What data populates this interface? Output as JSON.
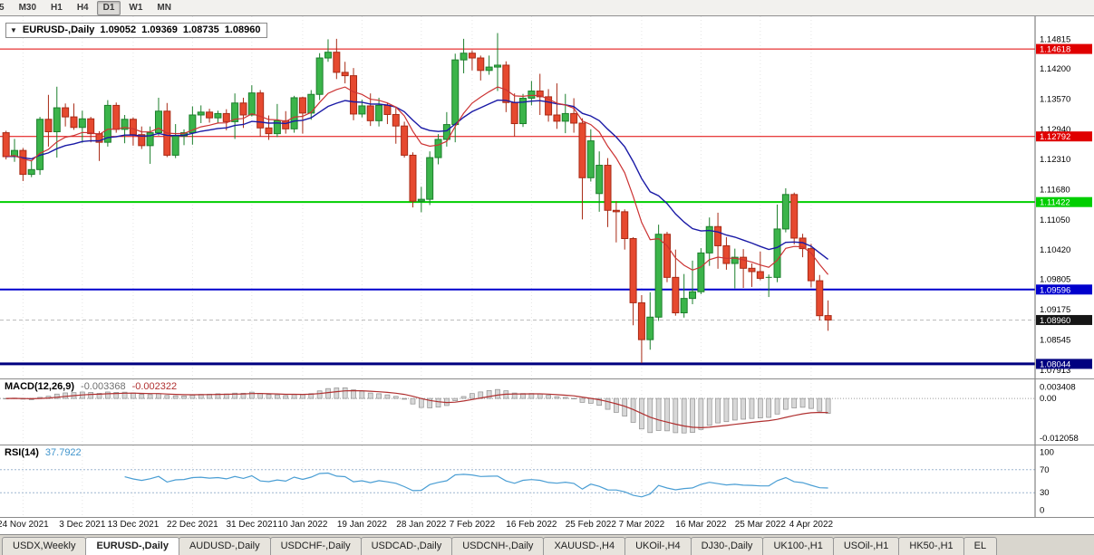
{
  "toolbar": {
    "timeframes": [
      {
        "label": "5",
        "active": false
      },
      {
        "label": "M30",
        "active": false
      },
      {
        "label": "H1",
        "active": false
      },
      {
        "label": "H4",
        "active": false
      },
      {
        "label": "D1",
        "active": true
      },
      {
        "label": "W1",
        "active": false
      },
      {
        "label": "MN",
        "active": false
      }
    ]
  },
  "chart": {
    "collapse_arrow_icon": "▼",
    "symbol_label": "EURUSD-,Daily",
    "ohlc": {
      "open": "1.09052",
      "high": "1.09369",
      "low": "1.08735",
      "close": "1.08960"
    }
  },
  "indicators": {
    "macd": {
      "name": "MACD(12,26,9)",
      "main_value": "-0.003368",
      "signal_value": "-0.002322",
      "axis_labels": [
        {
          "value": 0.003408,
          "label": "0.003408"
        },
        {
          "value": 0,
          "label": "0.00"
        },
        {
          "value": -0.012058,
          "label": "-0.012058"
        }
      ]
    },
    "rsi": {
      "name": "RSI(14)",
      "value": "37.7922",
      "levels": [
        70,
        30
      ],
      "axis_labels": [
        {
          "value": 100,
          "label": "100"
        },
        {
          "value": 70,
          "label": "70"
        },
        {
          "value": 30,
          "label": "30"
        },
        {
          "value": 0,
          "label": "0"
        }
      ]
    }
  },
  "tabs": [
    {
      "label": "USDX,Weekly",
      "active": false
    },
    {
      "label": "EURUSD-,Daily",
      "active": true
    },
    {
      "label": "AUDUSD-,Daily",
      "active": false
    },
    {
      "label": "USDCHF-,Daily",
      "active": false
    },
    {
      "label": "USDCAD-,Daily",
      "active": false
    },
    {
      "label": "USDCNH-,Daily",
      "active": false
    },
    {
      "label": "XAUUSD-,H4",
      "active": false
    },
    {
      "label": "UKOil-,H4",
      "active": false
    },
    {
      "label": "DJ30-,Daily",
      "active": false
    },
    {
      "label": "UK100-,H1",
      "active": false
    },
    {
      "label": "USOil-,H1",
      "active": false
    },
    {
      "label": "HK50-,H1",
      "active": false
    },
    {
      "label": "EL",
      "active": false
    }
  ],
  "chart_data": {
    "type": "candlestick",
    "symbol": "EURUSD-",
    "timeframe": "Daily",
    "colors": {
      "up": "#3bb44a",
      "up_border": "#1c7f2c",
      "down": "#e6492f",
      "down_border": "#a82a15",
      "ma_fast": "#cc3333",
      "ma_slow": "#1a1aa6",
      "macd_hist": "#d8d8d8",
      "macd_hist_border": "#8f8f8f",
      "macd_signal": "#b03030",
      "rsi_line": "#4a9ed4"
    },
    "y_axis": {
      "min": 1.0774,
      "max": 1.153,
      "labels": [
        {
          "value": 1.14815,
          "label": "1.14815"
        },
        {
          "value": 1.142,
          "label": "1.14200"
        },
        {
          "value": 1.1357,
          "label": "1.13570"
        },
        {
          "value": 1.1294,
          "label": "1.12940"
        },
        {
          "value": 1.1231,
          "label": "1.12310"
        },
        {
          "value": 1.1168,
          "label": "1.11680"
        },
        {
          "value": 1.1105,
          "label": "1.11050"
        },
        {
          "value": 1.1042,
          "label": "1.10420"
        },
        {
          "value": 1.09805,
          "label": "1.09805"
        },
        {
          "value": 1.09175,
          "label": "1.09175"
        },
        {
          "value": 1.08545,
          "label": "1.08545"
        },
        {
          "value": 1.07913,
          "label": "1.07913"
        }
      ]
    },
    "levels": [
      {
        "price": 1.14618,
        "label": "1.14618",
        "color": "#e00000",
        "line_width": 1
      },
      {
        "price": 1.12792,
        "label": "1.12792",
        "color": "#e00000",
        "line_width": 1
      },
      {
        "price": 1.11422,
        "label": "1.11422",
        "color": "#00ce00",
        "line_width": 2
      },
      {
        "price": 1.09596,
        "label": "1.09596",
        "color": "#0000cd",
        "line_width": 2
      },
      {
        "price": 1.08044,
        "label": "1.08044",
        "color": "#000080",
        "line_width": 3
      }
    ],
    "current_price": {
      "price": 1.0896,
      "label": "1.08960",
      "label_bg": "#161616"
    },
    "moving_averages": [
      {
        "type": "EMA",
        "period": 10,
        "color_key": "ma_fast"
      },
      {
        "type": "EMA",
        "period": 20,
        "color_key": "ma_slow"
      }
    ],
    "x_ticks": [
      {
        "index": 2,
        "label": "24 Nov 2021"
      },
      {
        "index": 9,
        "label": "3 Dec 2021"
      },
      {
        "index": 15,
        "label": "13 Dec 2021"
      },
      {
        "index": 22,
        "label": "22 Dec 2021"
      },
      {
        "index": 29,
        "label": "31 Dec 2021"
      },
      {
        "index": 35,
        "label": "10 Jan 2022"
      },
      {
        "index": 42,
        "label": "19 Jan 2022"
      },
      {
        "index": 49,
        "label": "28 Jan 2022"
      },
      {
        "index": 55,
        "label": "7 Feb 2022"
      },
      {
        "index": 62,
        "label": "16 Feb 2022"
      },
      {
        "index": 69,
        "label": "25 Feb 2022"
      },
      {
        "index": 75,
        "label": "7 Mar 2022"
      },
      {
        "index": 82,
        "label": "16 Mar 2022"
      },
      {
        "index": 89,
        "label": "25 Mar 2022"
      },
      {
        "index": 95,
        "label": "4 Apr 2022"
      }
    ],
    "candles": [
      [
        1.1287,
        1.1291,
        1.12312,
        1.1237
      ],
      [
        1.1237,
        1.1274,
        1.12262,
        1.125
      ],
      [
        1.125,
        1.1255,
        1.11861,
        1.12
      ],
      [
        1.12,
        1.1229,
        1.11942,
        1.121
      ],
      [
        1.121,
        1.132,
        1.1199,
        1.1315
      ],
      [
        1.1315,
        1.1366,
        1.1258,
        1.1289
      ],
      [
        1.1289,
        1.1383,
        1.1235,
        1.1339
      ],
      [
        1.1339,
        1.1348,
        1.13,
        1.132
      ],
      [
        1.132,
        1.1348,
        1.1293,
        1.1298
      ],
      [
        1.1298,
        1.1333,
        1.1266,
        1.1316
      ],
      [
        1.1316,
        1.132,
        1.1267,
        1.1285
      ],
      [
        1.1285,
        1.129,
        1.1228,
        1.1267
      ],
      [
        1.1267,
        1.1355,
        1.1258,
        1.1344
      ],
      [
        1.1344,
        1.135,
        1.1287,
        1.1294
      ],
      [
        1.1294,
        1.1324,
        1.1265,
        1.1315
      ],
      [
        1.1315,
        1.1319,
        1.126,
        1.1283
      ],
      [
        1.1283,
        1.13,
        1.1253,
        1.126
      ],
      [
        1.126,
        1.13,
        1.1222,
        1.1287
      ],
      [
        1.1287,
        1.136,
        1.1281,
        1.1332
      ],
      [
        1.1332,
        1.1349,
        1.1236,
        1.124
      ],
      [
        1.124,
        1.1305,
        1.1234,
        1.128
      ],
      [
        1.128,
        1.1294,
        1.1261,
        1.1287
      ],
      [
        1.1287,
        1.1342,
        1.1262,
        1.1324
      ],
      [
        1.1324,
        1.1344,
        1.1307,
        1.133
      ],
      [
        1.133,
        1.1337,
        1.1308,
        1.1318
      ],
      [
        1.1318,
        1.1333,
        1.1306,
        1.1327
      ],
      [
        1.1327,
        1.1336,
        1.1292,
        1.131
      ],
      [
        1.131,
        1.1369,
        1.1274,
        1.1349
      ],
      [
        1.1349,
        1.136,
        1.1297,
        1.1324
      ],
      [
        1.1324,
        1.1386,
        1.1321,
        1.137
      ],
      [
        1.137,
        1.1376,
        1.1279,
        1.1297
      ],
      [
        1.1297,
        1.1323,
        1.1272,
        1.1285
      ],
      [
        1.1285,
        1.1347,
        1.1278,
        1.1312
      ],
      [
        1.1312,
        1.1332,
        1.1285,
        1.1295
      ],
      [
        1.1295,
        1.1364,
        1.1287,
        1.136
      ],
      [
        1.136,
        1.1362,
        1.1285,
        1.1328
      ],
      [
        1.1328,
        1.1376,
        1.1314,
        1.1367
      ],
      [
        1.1367,
        1.1453,
        1.1355,
        1.1443
      ],
      [
        1.1443,
        1.1482,
        1.1435,
        1.1455
      ],
      [
        1.1455,
        1.1483,
        1.1399,
        1.1413
      ],
      [
        1.1413,
        1.1435,
        1.139,
        1.1406
      ],
      [
        1.1406,
        1.1422,
        1.1313,
        1.1326
      ],
      [
        1.1326,
        1.1356,
        1.1319,
        1.1343
      ],
      [
        1.1343,
        1.1369,
        1.1301,
        1.1312
      ],
      [
        1.1312,
        1.136,
        1.13,
        1.1344
      ],
      [
        1.1344,
        1.1349,
        1.1305,
        1.1325
      ],
      [
        1.1325,
        1.1339,
        1.1264,
        1.1301
      ],
      [
        1.1301,
        1.131,
        1.1235,
        1.124
      ],
      [
        1.124,
        1.1246,
        1.1131,
        1.1144
      ],
      [
        1.1144,
        1.1174,
        1.1121,
        1.1148
      ],
      [
        1.1148,
        1.1248,
        1.1136,
        1.1235
      ],
      [
        1.1235,
        1.1284,
        1.1221,
        1.1273
      ],
      [
        1.1273,
        1.133,
        1.1258,
        1.1304
      ],
      [
        1.1304,
        1.1452,
        1.1267,
        1.1439
      ],
      [
        1.1439,
        1.1483,
        1.1411,
        1.1453
      ],
      [
        1.1453,
        1.1459,
        1.1417,
        1.1443
      ],
      [
        1.1443,
        1.1448,
        1.1396,
        1.1417
      ],
      [
        1.1417,
        1.1448,
        1.1408,
        1.1424
      ],
      [
        1.1424,
        1.1495,
        1.1374,
        1.1428
      ],
      [
        1.1428,
        1.1436,
        1.133,
        1.135
      ],
      [
        1.135,
        1.1369,
        1.1279,
        1.1306
      ],
      [
        1.1306,
        1.1368,
        1.1299,
        1.1359
      ],
      [
        1.1359,
        1.1395,
        1.1344,
        1.1374
      ],
      [
        1.1374,
        1.141,
        1.1324,
        1.1362
      ],
      [
        1.1362,
        1.1378,
        1.131,
        1.1324
      ],
      [
        1.1324,
        1.139,
        1.1295,
        1.1311
      ],
      [
        1.1311,
        1.1368,
        1.1286,
        1.1327
      ],
      [
        1.1327,
        1.1359,
        1.1287,
        1.1307
      ],
      [
        1.1307,
        1.1317,
        1.1106,
        1.1193
      ],
      [
        1.1193,
        1.1294,
        1.1185,
        1.127
      ],
      [
        1.116,
        1.1248,
        1.1122,
        1.1219
      ],
      [
        1.1219,
        1.1234,
        1.109,
        1.1125
      ],
      [
        1.1125,
        1.1144,
        1.1058,
        1.1122
      ],
      [
        1.1122,
        1.1127,
        1.1043,
        1.1066
      ],
      [
        1.1066,
        1.1069,
        1.0885,
        1.0932
      ],
      [
        1.0932,
        1.0948,
        1.0806,
        1.0855
      ],
      [
        1.0855,
        1.0954,
        1.0834,
        1.0902
      ],
      [
        1.0902,
        1.1095,
        1.0894,
        1.1075
      ],
      [
        1.1075,
        1.108,
        1.0975,
        1.0985
      ],
      [
        1.0985,
        1.1043,
        1.0905,
        1.0911
      ],
      [
        1.0911,
        1.0992,
        1.0901,
        1.0941
      ],
      [
        1.0941,
        1.102,
        1.0929,
        1.0955
      ],
      [
        1.0955,
        1.1046,
        1.095,
        1.1036
      ],
      [
        1.1036,
        1.111,
        1.1009,
        1.1091
      ],
      [
        1.1091,
        1.112,
        1.1003,
        1.1051
      ],
      [
        1.1051,
        1.1069,
        1.1001,
        1.1014
      ],
      [
        1.1014,
        1.1045,
        1.0962,
        1.1027
      ],
      [
        1.1027,
        1.1044,
        1.0963,
        1.1004
      ],
      [
        1.1004,
        1.1014,
        1.0965,
        1.0997
      ],
      [
        1.0997,
        1.1039,
        1.0979,
        1.0983
      ],
      [
        1.0983,
        1.0991,
        1.0944,
        1.0985
      ],
      [
        1.0985,
        1.1137,
        1.0975,
        1.1086
      ],
      [
        1.1086,
        1.1171,
        1.1079,
        1.1158
      ],
      [
        1.1158,
        1.1162,
        1.1054,
        1.1067
      ],
      [
        1.1067,
        1.1076,
        1.1027,
        1.1045
      ],
      [
        1.1045,
        1.1055,
        1.0964,
        1.0978
      ],
      [
        1.0978,
        1.099,
        1.0895,
        1.0905
      ],
      [
        1.09052,
        1.09369,
        1.08735,
        1.0896
      ]
    ]
  }
}
